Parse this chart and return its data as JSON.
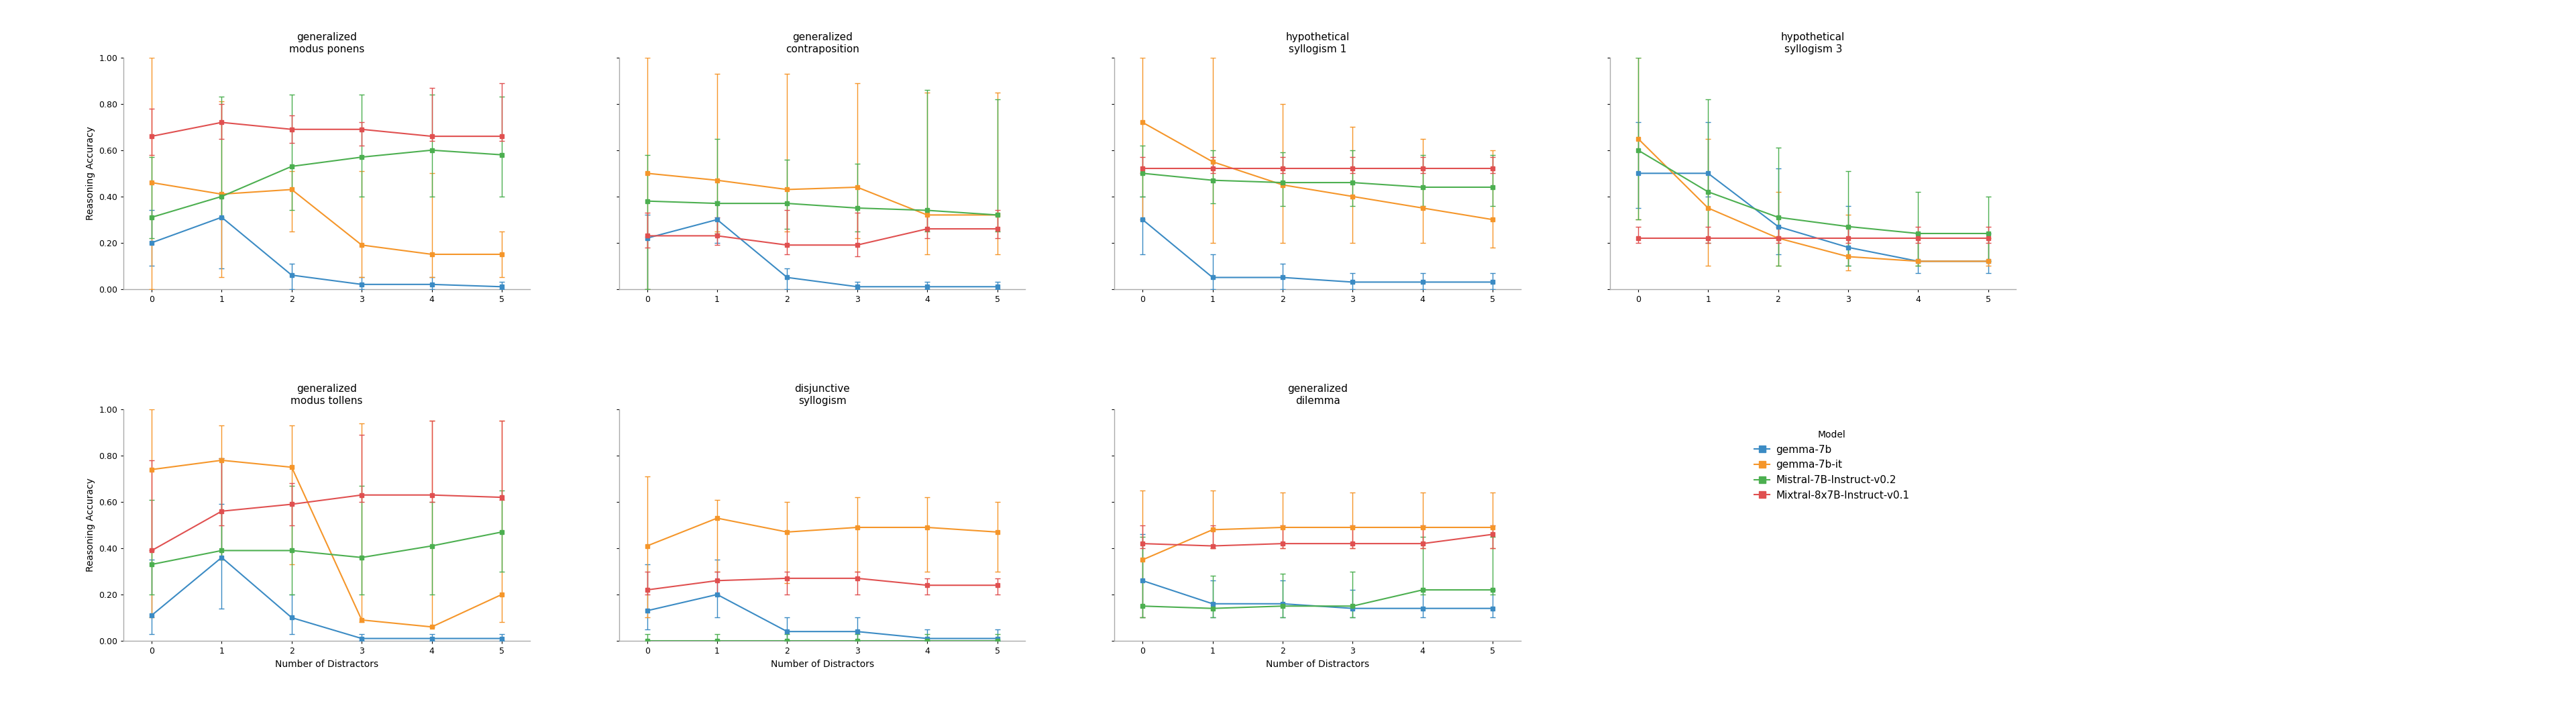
{
  "models": [
    "gemma-7b",
    "gemma-7b-it",
    "Mistral-7B-Instruct-v0.2",
    "Mixtral-8x7B-Instruct-v0.1"
  ],
  "model_colors": [
    "#3B8BC4",
    "#F5962A",
    "#4CAF50",
    "#E05050"
  ],
  "x": [
    0,
    1,
    2,
    3,
    4,
    5
  ],
  "subplots": {
    "top": [
      {
        "title": "generalized\nmodus ponens",
        "data": {
          "gemma-7b": {
            "y": [
              0.2,
              0.31,
              0.06,
              0.02,
              0.02,
              0.01
            ],
            "yerr_lo": [
              0.1,
              0.22,
              0.06,
              0.02,
              0.02,
              0.01
            ],
            "yerr_hi": [
              0.14,
              0.1,
              0.05,
              0.03,
              0.03,
              0.02
            ]
          },
          "gemma-7b-it": {
            "y": [
              0.46,
              0.41,
              0.43,
              0.19,
              0.15,
              0.15
            ],
            "yerr_lo": [
              0.46,
              0.36,
              0.18,
              0.14,
              0.1,
              0.1
            ],
            "yerr_hi": [
              0.54,
              0.4,
              0.08,
              0.32,
              0.35,
              0.1
            ]
          },
          "Mistral-7B-Instruct-v0.2": {
            "y": [
              0.31,
              0.4,
              0.53,
              0.57,
              0.6,
              0.58
            ],
            "yerr_lo": [
              0.09,
              0.09,
              0.19,
              0.17,
              0.2,
              0.18
            ],
            "yerr_hi": [
              0.26,
              0.43,
              0.31,
              0.27,
              0.24,
              0.25
            ]
          },
          "Mixtral-8x7B-Instruct-v0.1": {
            "y": [
              0.66,
              0.72,
              0.69,
              0.69,
              0.66,
              0.66
            ],
            "yerr_lo": [
              0.08,
              0.07,
              0.06,
              0.07,
              0.02,
              0.02
            ],
            "yerr_hi": [
              0.12,
              0.08,
              0.06,
              0.03,
              0.21,
              0.23
            ]
          }
        }
      },
      {
        "title": "generalized\ncontraposition",
        "data": {
          "gemma-7b": {
            "y": [
              0.22,
              0.3,
              0.05,
              0.01,
              0.01,
              0.01
            ],
            "yerr_lo": [
              0.22,
              0.1,
              0.05,
              0.01,
              0.01,
              0.01
            ],
            "yerr_hi": [
              0.1,
              0.08,
              0.04,
              0.02,
              0.02,
              0.02
            ]
          },
          "gemma-7b-it": {
            "y": [
              0.5,
              0.47,
              0.43,
              0.44,
              0.32,
              0.32
            ],
            "yerr_lo": [
              0.5,
              0.22,
              0.18,
              0.22,
              0.17,
              0.17
            ],
            "yerr_hi": [
              0.5,
              0.46,
              0.5,
              0.45,
              0.53,
              0.53
            ]
          },
          "Mistral-7B-Instruct-v0.2": {
            "y": [
              0.38,
              0.37,
              0.37,
              0.35,
              0.34,
              0.32
            ],
            "yerr_lo": [
              0.38,
              0.13,
              0.11,
              0.1,
              0.09,
              0.07
            ],
            "yerr_hi": [
              0.2,
              0.28,
              0.19,
              0.19,
              0.52,
              0.5
            ]
          },
          "Mixtral-8x7B-Instruct-v0.1": {
            "y": [
              0.23,
              0.23,
              0.19,
              0.19,
              0.26,
              0.26
            ],
            "yerr_lo": [
              0.05,
              0.04,
              0.04,
              0.05,
              0.04,
              0.04
            ],
            "yerr_hi": [
              0.1,
              0.08,
              0.15,
              0.14,
              0.08,
              0.08
            ]
          }
        }
      },
      {
        "title": "hypothetical\nsyllogism 1",
        "data": {
          "gemma-7b": {
            "y": [
              0.3,
              0.05,
              0.05,
              0.03,
              0.03,
              0.03
            ],
            "yerr_lo": [
              0.15,
              0.05,
              0.05,
              0.03,
              0.03,
              0.03
            ],
            "yerr_hi": [
              0.1,
              0.1,
              0.06,
              0.04,
              0.04,
              0.04
            ]
          },
          "gemma-7b-it": {
            "y": [
              0.72,
              0.55,
              0.45,
              0.4,
              0.35,
              0.3
            ],
            "yerr_lo": [
              0.42,
              0.35,
              0.25,
              0.2,
              0.15,
              0.12
            ],
            "yerr_hi": [
              0.28,
              0.45,
              0.35,
              0.3,
              0.3,
              0.3
            ]
          },
          "Mistral-7B-Instruct-v0.2": {
            "y": [
              0.5,
              0.47,
              0.46,
              0.46,
              0.44,
              0.44
            ],
            "yerr_lo": [
              0.1,
              0.1,
              0.1,
              0.1,
              0.08,
              0.08
            ],
            "yerr_hi": [
              0.12,
              0.13,
              0.13,
              0.14,
              0.14,
              0.14
            ]
          },
          "Mixtral-8x7B-Instruct-v0.1": {
            "y": [
              0.52,
              0.52,
              0.52,
              0.52,
              0.52,
              0.52
            ],
            "yerr_lo": [
              0.02,
              0.02,
              0.02,
              0.02,
              0.02,
              0.02
            ],
            "yerr_hi": [
              0.05,
              0.05,
              0.05,
              0.05,
              0.05,
              0.05
            ]
          }
        }
      },
      {
        "title": "hypothetical\nsyllogism 3",
        "data": {
          "gemma-7b": {
            "y": [
              0.5,
              0.5,
              0.27,
              0.18,
              0.12,
              0.12
            ],
            "yerr_lo": [
              0.15,
              0.1,
              0.12,
              0.08,
              0.05,
              0.05
            ],
            "yerr_hi": [
              0.22,
              0.22,
              0.25,
              0.18,
              0.12,
              0.12
            ]
          },
          "gemma-7b-it": {
            "y": [
              0.65,
              0.35,
              0.22,
              0.14,
              0.12,
              0.12
            ],
            "yerr_lo": [
              0.35,
              0.25,
              0.12,
              0.06,
              0.02,
              0.02
            ],
            "yerr_hi": [
              0.35,
              0.3,
              0.2,
              0.18,
              0.1,
              0.1
            ]
          },
          "Mistral-7B-Instruct-v0.2": {
            "y": [
              0.6,
              0.42,
              0.31,
              0.27,
              0.24,
              0.24
            ],
            "yerr_lo": [
              0.3,
              0.22,
              0.21,
              0.17,
              0.14,
              0.12
            ],
            "yerr_hi": [
              0.4,
              0.4,
              0.3,
              0.24,
              0.18,
              0.16
            ]
          },
          "Mixtral-8x7B-Instruct-v0.1": {
            "y": [
              0.22,
              0.22,
              0.22,
              0.22,
              0.22,
              0.22
            ],
            "yerr_lo": [
              0.02,
              0.02,
              0.02,
              0.02,
              0.02,
              0.02
            ],
            "yerr_hi": [
              0.05,
              0.05,
              0.05,
              0.05,
              0.05,
              0.05
            ]
          }
        }
      }
    ],
    "bottom": [
      {
        "title": "generalized\nmodus tollens",
        "data": {
          "gemma-7b": {
            "y": [
              0.11,
              0.36,
              0.1,
              0.01,
              0.01,
              0.01
            ],
            "yerr_lo": [
              0.08,
              0.22,
              0.07,
              0.01,
              0.01,
              0.01
            ],
            "yerr_hi": [
              0.24,
              0.23,
              0.1,
              0.02,
              0.02,
              0.02
            ]
          },
          "gemma-7b-it": {
            "y": [
              0.74,
              0.78,
              0.75,
              0.09,
              0.06,
              0.2
            ],
            "yerr_lo": [
              0.64,
              0.43,
              0.42,
              0.01,
              0.0,
              0.12
            ],
            "yerr_hi": [
              0.26,
              0.15,
              0.18,
              0.85,
              0.89,
              0.75
            ]
          },
          "Mistral-7B-Instruct-v0.2": {
            "y": [
              0.33,
              0.39,
              0.39,
              0.36,
              0.41,
              0.47
            ],
            "yerr_lo": [
              0.13,
              0.04,
              0.19,
              0.16,
              0.21,
              0.17
            ],
            "yerr_hi": [
              0.28,
              0.4,
              0.28,
              0.31,
              0.19,
              0.18
            ]
          },
          "Mixtral-8x7B-Instruct-v0.1": {
            "y": [
              0.39,
              0.56,
              0.59,
              0.63,
              0.63,
              0.62
            ],
            "yerr_lo": [
              0.0,
              0.06,
              0.09,
              0.03,
              0.03,
              0.01
            ],
            "yerr_hi": [
              0.39,
              0.23,
              0.09,
              0.26,
              0.32,
              0.33
            ]
          }
        }
      },
      {
        "title": "disjunctive\nsyllogism",
        "data": {
          "gemma-7b": {
            "y": [
              0.13,
              0.2,
              0.04,
              0.04,
              0.01,
              0.01
            ],
            "yerr_lo": [
              0.08,
              0.1,
              0.04,
              0.04,
              0.01,
              0.01
            ],
            "yerr_hi": [
              0.2,
              0.15,
              0.06,
              0.06,
              0.04,
              0.04
            ]
          },
          "gemma-7b-it": {
            "y": [
              0.41,
              0.53,
              0.47,
              0.49,
              0.49,
              0.47
            ],
            "yerr_lo": [
              0.31,
              0.23,
              0.22,
              0.19,
              0.19,
              0.17
            ],
            "yerr_hi": [
              0.3,
              0.08,
              0.13,
              0.13,
              0.13,
              0.13
            ]
          },
          "Mistral-7B-Instruct-v0.2": {
            "y": [
              0.0,
              0.0,
              0.0,
              0.0,
              0.0,
              0.0
            ],
            "yerr_lo": [
              0.0,
              0.0,
              0.0,
              0.0,
              0.0,
              0.0
            ],
            "yerr_hi": [
              0.03,
              0.03,
              0.03,
              0.03,
              0.03,
              0.03
            ]
          },
          "Mixtral-8x7B-Instruct-v0.1": {
            "y": [
              0.22,
              0.26,
              0.27,
              0.27,
              0.24,
              0.24
            ],
            "yerr_lo": [
              0.02,
              0.06,
              0.07,
              0.07,
              0.04,
              0.04
            ],
            "yerr_hi": [
              0.08,
              0.04,
              0.03,
              0.03,
              0.03,
              0.03
            ]
          }
        }
      },
      {
        "title": "generalized\ndilemma",
        "data": {
          "gemma-7b": {
            "y": [
              0.26,
              0.16,
              0.16,
              0.14,
              0.14,
              0.14
            ],
            "yerr_lo": [
              0.16,
              0.06,
              0.06,
              0.04,
              0.04,
              0.04
            ],
            "yerr_hi": [
              0.2,
              0.1,
              0.1,
              0.08,
              0.08,
              0.08
            ]
          },
          "gemma-7b-it": {
            "y": [
              0.35,
              0.48,
              0.49,
              0.49,
              0.49,
              0.49
            ],
            "yerr_lo": [
              0.25,
              0.08,
              0.09,
              0.09,
              0.09,
              0.09
            ],
            "yerr_hi": [
              0.3,
              0.17,
              0.15,
              0.15,
              0.15,
              0.15
            ]
          },
          "Mistral-7B-Instruct-v0.2": {
            "y": [
              0.15,
              0.14,
              0.15,
              0.15,
              0.22,
              0.22
            ],
            "yerr_lo": [
              0.05,
              0.04,
              0.05,
              0.05,
              0.02,
              0.02
            ],
            "yerr_hi": [
              0.3,
              0.14,
              0.14,
              0.15,
              0.23,
              0.23
            ]
          },
          "Mixtral-8x7B-Instruct-v0.1": {
            "y": [
              0.42,
              0.41,
              0.42,
              0.42,
              0.42,
              0.46
            ],
            "yerr_lo": [
              0.02,
              0.01,
              0.02,
              0.02,
              0.02,
              0.06
            ],
            "yerr_hi": [
              0.08,
              0.09,
              0.08,
              0.08,
              0.08,
              0.04
            ]
          }
        }
      }
    ]
  },
  "ylabel": "Reasoning Accuracy",
  "xlabel": "Number of Distractors",
  "ylim": [
    0.0,
    1.0
  ],
  "yticks": [
    0.0,
    0.2,
    0.4,
    0.6,
    0.8,
    1.0
  ],
  "yticklabels": [
    "0.00",
    "0.20",
    "0.40",
    "0.60",
    "0.80",
    "1.00"
  ],
  "background_color": "#FFFFFF",
  "legend_title": "Model"
}
